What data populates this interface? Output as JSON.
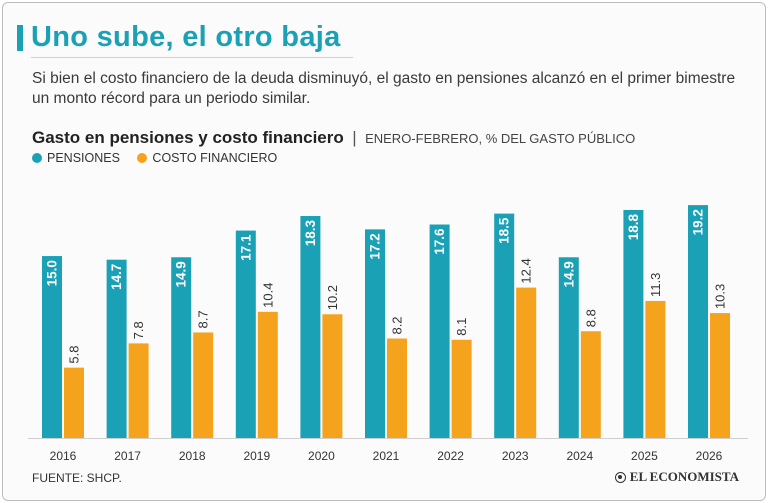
{
  "headline": "Uno sube, el otro baja",
  "subtitle": "Si bien el costo financiero de la deuda disminuyó, el gasto en pensiones alcanzó en el primer bimestre un monto récord para un periodo similar.",
  "chart_title": "Gasto en pensiones y costo financiero",
  "chart_separator": "|",
  "chart_subtitle": "ENERO-FEBRERO, % DEL GASTO PÚBLICO",
  "source": "FUENTE: SHCP.",
  "brand": "EL ECONOMISTA",
  "colors": {
    "pensiones": "#1ba1b6",
    "costo": "#f5a21c",
    "accent": "#1ba1b6"
  },
  "chart_data": {
    "type": "bar",
    "categories": [
      "2016",
      "2017",
      "2018",
      "2019",
      "2020",
      "2021",
      "2022",
      "2023",
      "2024",
      "2025",
      "2026"
    ],
    "series": [
      {
        "name": "PENSIONES",
        "values": [
          15.0,
          14.7,
          14.9,
          17.1,
          18.3,
          17.2,
          17.6,
          18.5,
          14.9,
          18.8,
          19.2
        ],
        "labels": [
          "15.0",
          "14.7",
          "14.9",
          "17.1",
          "18.3",
          "17.2",
          "17.6",
          "18.5",
          "14.9",
          "18.8",
          "19.2"
        ]
      },
      {
        "name": "COSTO FINANCIERO",
        "values": [
          5.8,
          7.8,
          8.7,
          10.4,
          10.2,
          8.2,
          8.1,
          12.4,
          8.8,
          11.3,
          10.3
        ],
        "labels": [
          "5.8",
          "7.8",
          "8.7",
          "10.4",
          "10.2",
          "8.2",
          "8.1",
          "12.4",
          "8.8",
          "11.3",
          "10.3"
        ]
      }
    ],
    "legend_position": "top-left",
    "grid": false
  }
}
